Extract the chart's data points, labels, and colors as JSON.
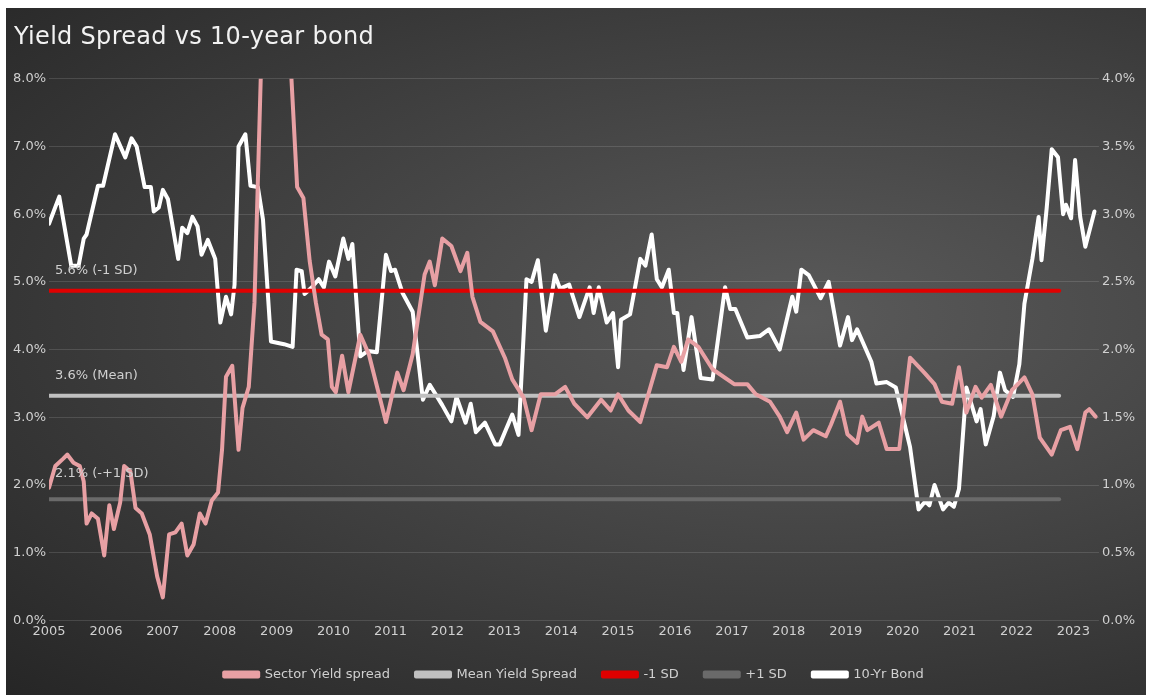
{
  "chart_data": {
    "type": "line",
    "title": "Yield Spread vs 10-year bond",
    "xlim": [
      2005,
      2023.45
    ],
    "xticks": [
      2005,
      2006,
      2007,
      2008,
      2009,
      2010,
      2011,
      2012,
      2013,
      2014,
      2015,
      2016,
      2017,
      2018,
      2019,
      2020,
      2021,
      2022,
      2023
    ],
    "ylim": [
      0,
      8
    ],
    "yticks": [
      {
        "value": 0,
        "label": "0.0%"
      },
      {
        "value": 1,
        "label": "1.0%"
      },
      {
        "value": 2,
        "label": "2.0%"
      },
      {
        "value": 3,
        "label": "3.0%"
      },
      {
        "value": 4,
        "label": "4.0%"
      },
      {
        "value": 5,
        "label": "5.0%"
      },
      {
        "value": 6,
        "label": "6.0%"
      },
      {
        "value": 7,
        "label": "7.0%"
      },
      {
        "value": 8,
        "label": "8.0%"
      }
    ],
    "y2lim": [
      0,
      4
    ],
    "y2ticks": [
      {
        "value": 0,
        "label": "0.0%"
      },
      {
        "value": 0.5,
        "label": "0.5%"
      },
      {
        "value": 1,
        "label": "1.0%"
      },
      {
        "value": 1.5,
        "label": "1.5%"
      },
      {
        "value": 2,
        "label": "2.0%"
      },
      {
        "value": 2.5,
        "label": "2.5%"
      },
      {
        "value": 3,
        "label": "3.0%"
      },
      {
        "value": 3.5,
        "label": "3.5%"
      },
      {
        "value": 4,
        "label": "4.0%"
      }
    ],
    "grid": "y",
    "legend": "bottom",
    "marker": "none",
    "annotations": [
      "5.6% (-1 SD)",
      "3.6% (Mean)",
      "2.1% (-+1 SD)"
    ],
    "series": [
      {
        "name": "Sector Yield spread",
        "color": "#e8a0a4",
        "type": "line",
        "x": [
          2005,
          2005.11,
          2005.25,
          2005.32,
          2005.43,
          2005.54,
          2005.61,
          2005.66,
          2005.75,
          2005.86,
          2005.97,
          2006.06,
          2006.14,
          2006.25,
          2006.32,
          2006.43,
          2006.52,
          2006.63,
          2006.77,
          2006.9,
          2007,
          2007.11,
          2007.22,
          2007.33,
          2007.43,
          2007.54,
          2007.65,
          2007.75,
          2007.86,
          2007.97,
          2008.04,
          2008.11,
          2008.22,
          2008.33,
          2008.4,
          2008.51,
          2008.61,
          2008.72,
          2009,
          2009.26,
          2009.36,
          2009.47,
          2009.58,
          2009.69,
          2009.79,
          2009.9,
          2009.97,
          2010.04,
          2010.15,
          2010.26,
          2010.47,
          2010.62,
          2010.92,
          2011.12,
          2011.23,
          2011.39,
          2011.6,
          2011.69,
          2011.78,
          2011.91,
          2012.07,
          2012.23,
          2012.35,
          2012.44,
          2012.58,
          2012.8,
          2013.01,
          2013.14,
          2013.34,
          2013.48,
          2013.64,
          2013.89,
          2014.07,
          2014.23,
          2014.46,
          2014.7,
          2014.87,
          2015,
          2015.18,
          2015.39,
          2015.68,
          2015.86,
          2015.98,
          2016.11,
          2016.23,
          2016.41,
          2016.66,
          2017.04,
          2017.27,
          2017.42,
          2017.67,
          2017.84,
          2017.97,
          2018.13,
          2018.26,
          2018.43,
          2018.65,
          2018.74,
          2018.9,
          2019.03,
          2019.2,
          2019.29,
          2019.38,
          2019.58,
          2019.72,
          2019.94,
          2020.13,
          2020.38,
          2020.56,
          2020.69,
          2020.87,
          2020.99,
          2021.12,
          2021.28,
          2021.39,
          2021.55,
          2021.73,
          2021.92,
          2022.14,
          2022.28,
          2022.41,
          2022.62,
          2022.78,
          2022.94,
          2023.07,
          2023.21,
          2023.28,
          2023.39
        ],
        "values": [
          1.96,
          2.28,
          2.39,
          2.45,
          2.33,
          2.28,
          2.05,
          1.43,
          1.58,
          1.5,
          0.96,
          1.7,
          1.35,
          1.74,
          2.28,
          2.2,
          1.66,
          1.58,
          1.27,
          0.65,
          0.34,
          1.27,
          1.3,
          1.43,
          0.96,
          1.12,
          1.58,
          1.43,
          1.77,
          1.89,
          2.52,
          3.6,
          3.76,
          2.52,
          3.14,
          3.45,
          4.69,
          8.0,
          null,
          8.0,
          6.4,
          6.24,
          5.31,
          4.69,
          4.22,
          4.15,
          3.45,
          3.37,
          3.91,
          3.37,
          4.22,
          3.93,
          2.93,
          3.66,
          3.4,
          3.93,
          5.11,
          5.3,
          4.95,
          5.64,
          5.53,
          5.16,
          5.43,
          4.78,
          4.41,
          4.27,
          3.88,
          3.56,
          3.29,
          2.81,
          3.34,
          3.34,
          3.45,
          3.2,
          3.0,
          3.26,
          3.1,
          3.34,
          3.1,
          2.93,
          3.77,
          3.74,
          4.04,
          3.82,
          4.15,
          4.04,
          3.71,
          3.49,
          3.49,
          3.34,
          3.23,
          3.01,
          2.78,
          3.07,
          2.67,
          2.81,
          2.72,
          2.89,
          3.23,
          2.75,
          2.62,
          3.01,
          2.81,
          2.92,
          2.53,
          2.53,
          3.88,
          3.66,
          3.49,
          3.23,
          3.2,
          3.74,
          3.07,
          3.45,
          3.29,
          3.48,
          3.01,
          3.4,
          3.59,
          3.34,
          2.7,
          2.45,
          2.81,
          2.86,
          2.53,
          3.07,
          3.12,
          3.01
        ]
      },
      {
        "name": "Mean Yield Spread",
        "color": "#c0c0c0",
        "type": "line",
        "x": [
          2005,
          2022.75
        ],
        "values": [
          3.32,
          3.32
        ]
      },
      {
        "name": "-1 SD",
        "color": "#e00000",
        "type": "line",
        "x": [
          2005,
          2022.75
        ],
        "values": [
          4.87,
          4.87
        ]
      },
      {
        "name": "+1 SD",
        "color": "#6a6a6a",
        "type": "line",
        "x": [
          2005,
          2022.75
        ],
        "values": [
          1.79,
          1.79
        ]
      },
      {
        "name": "10-Yr Bond",
        "color": "#ffffff",
        "type": "line",
        "axis": "y2",
        "x": [
          2005,
          2005.18,
          2005.39,
          2005.52,
          2005.61,
          2005.66,
          2005.86,
          2005.95,
          2006.16,
          2006.34,
          2006.45,
          2006.54,
          2006.68,
          2006.79,
          2006.84,
          2006.93,
          2007,
          2007.09,
          2007.27,
          2007.34,
          2007.43,
          2007.52,
          2007.61,
          2007.68,
          2007.79,
          2007.92,
          2008.01,
          2008.11,
          2008.2,
          2008.26,
          2008.33,
          2008.45,
          2008.54,
          2008.67,
          2008.76,
          2008.9,
          2009.13,
          2009.28,
          2009.35,
          2009.44,
          2009.49,
          2009.62,
          2009.74,
          2009.83,
          2009.92,
          2010.03,
          2010.17,
          2010.26,
          2010.33,
          2010.47,
          2010.6,
          2010.76,
          2010.92,
          2011.01,
          2011.08,
          2011.21,
          2011.39,
          2011.57,
          2011.69,
          2011.91,
          2012.07,
          2012.16,
          2012.32,
          2012.41,
          2012.5,
          2012.66,
          2012.84,
          2012.92,
          2013.14,
          2013.25,
          2013.39,
          2013.48,
          2013.59,
          2013.73,
          2013.89,
          2013.98,
          2014.14,
          2014.32,
          2014.5,
          2014.57,
          2014.66,
          2014.8,
          2014.91,
          2015,
          2015.05,
          2015.21,
          2015.39,
          2015.48,
          2015.59,
          2015.68,
          2015.77,
          2015.89,
          2015.98,
          2016.04,
          2016.15,
          2016.29,
          2016.45,
          2016.66,
          2016.88,
          2016.97,
          2017.06,
          2017.27,
          2017.49,
          2017.65,
          2017.84,
          2018.06,
          2018.13,
          2018.22,
          2018.35,
          2018.56,
          2018.7,
          2018.9,
          2019.04,
          2019.11,
          2019.2,
          2019.45,
          2019.54,
          2019.72,
          2019.88,
          2020.13,
          2020.28,
          2020.4,
          2020.47,
          2020.56,
          2020.71,
          2020.81,
          2020.9,
          2020.99,
          2021.12,
          2021.3,
          2021.37,
          2021.46,
          2021.6,
          2021.71,
          2021.8,
          2021.94,
          2022.05,
          2022.14,
          2022.28,
          2022.39,
          2022.44,
          2022.53,
          2022.62,
          2022.73,
          2022.82,
          2022.87,
          2022.96,
          2023.03,
          2023.12,
          2023.21,
          2023.37
        ],
        "values": [
          2.93,
          3.13,
          2.62,
          2.62,
          2.82,
          2.85,
          3.21,
          3.21,
          3.59,
          3.42,
          3.56,
          3.5,
          3.2,
          3.2,
          3.02,
          3.05,
          3.18,
          3.11,
          2.67,
          2.9,
          2.86,
          2.98,
          2.91,
          2.7,
          2.81,
          2.67,
          2.2,
          2.39,
          2.26,
          2.48,
          3.5,
          3.59,
          3.21,
          3.2,
          2.96,
          2.06,
          2.04,
          2.02,
          2.59,
          2.58,
          2.41,
          2.46,
          2.52,
          2.46,
          2.65,
          2.54,
          2.82,
          2.67,
          2.78,
          1.95,
          1.99,
          1.98,
          2.7,
          2.58,
          2.59,
          2.42,
          2.28,
          1.63,
          1.74,
          1.59,
          1.47,
          1.65,
          1.46,
          1.6,
          1.39,
          1.46,
          1.3,
          1.3,
          1.52,
          1.37,
          2.52,
          2.5,
          2.66,
          2.14,
          2.55,
          2.45,
          2.48,
          2.24,
          2.46,
          2.27,
          2.46,
          2.2,
          2.27,
          1.87,
          2.22,
          2.26,
          2.67,
          2.62,
          2.85,
          2.52,
          2.46,
          2.59,
          2.27,
          2.27,
          1.85,
          2.24,
          1.79,
          1.78,
          2.46,
          2.3,
          2.3,
          2.09,
          2.1,
          2.15,
          2.0,
          2.39,
          2.28,
          2.59,
          2.55,
          2.38,
          2.5,
          2.03,
          2.24,
          2.07,
          2.15,
          1.91,
          1.75,
          1.76,
          1.72,
          1.28,
          0.82,
          0.88,
          0.85,
          1.0,
          0.82,
          0.87,
          0.84,
          0.97,
          1.72,
          1.47,
          1.56,
          1.3,
          1.51,
          1.83,
          1.7,
          1.65,
          1.89,
          2.34,
          2.67,
          2.98,
          2.66,
          3.04,
          3.48,
          3.42,
          3.0,
          3.07,
          2.97,
          3.4,
          2.98,
          2.76,
          3.02
        ]
      }
    ]
  }
}
